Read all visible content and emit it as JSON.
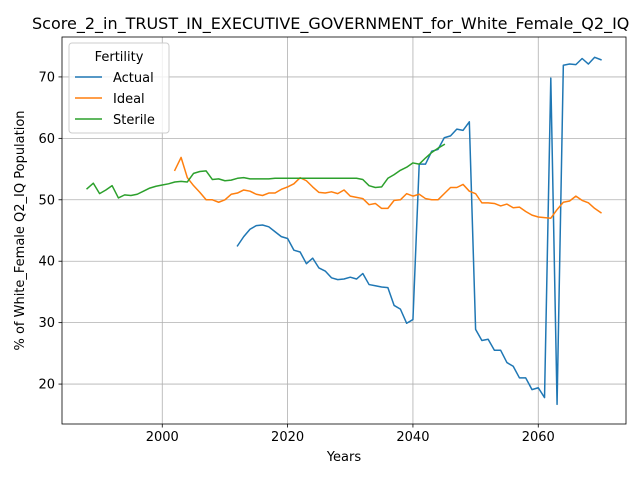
{
  "chart_data": {
    "type": "line",
    "title": "Score_2_in_TRUST_IN_EXECUTIVE_GOVERNMENT_for_White_Female_Q2_IQ",
    "xlabel": "Years",
    "ylabel": "% of White_Female Q2_IQ Population",
    "xlim": [
      1984,
      2074
    ],
    "ylim": [
      13.5,
      76.5
    ],
    "xticks": [
      2000,
      2020,
      2040,
      2060
    ],
    "yticks": [
      20,
      30,
      40,
      50,
      60,
      70
    ],
    "grid": true,
    "legend": {
      "title": "Fertility",
      "position": "upper-left"
    },
    "series": [
      {
        "name": "Actual",
        "color": "#1f77b4",
        "x": [
          2012,
          2013,
          2014,
          2015,
          2016,
          2017,
          2018,
          2019,
          2020,
          2021,
          2022,
          2023,
          2024,
          2025,
          2026,
          2027,
          2028,
          2029,
          2030,
          2031,
          2032,
          2033,
          2034,
          2035,
          2036,
          2037,
          2038,
          2039,
          2040,
          2041,
          2042,
          2043,
          2044,
          2045,
          2046,
          2047,
          2048,
          2049,
          2050,
          2051,
          2052,
          2053,
          2054,
          2055,
          2056,
          2057,
          2058,
          2059,
          2060,
          2061,
          2062,
          2063,
          2064,
          2065,
          2066,
          2067,
          2068,
          2069,
          2070
        ],
        "y": [
          42.5,
          44.0,
          45.2,
          45.8,
          45.9,
          45.6,
          44.8,
          44.0,
          43.7,
          41.8,
          41.5,
          39.6,
          40.5,
          38.9,
          38.4,
          37.3,
          37.0,
          37.1,
          37.4,
          37.1,
          38.0,
          36.2,
          36.0,
          35.8,
          35.7,
          32.8,
          32.2,
          29.9,
          30.5,
          55.8,
          55.8,
          57.9,
          58.2,
          60.1,
          60.4,
          61.5,
          61.3,
          62.7,
          28.9,
          27.1,
          27.3,
          25.5,
          25.5,
          23.5,
          22.9,
          21.0,
          21.0,
          19.1,
          19.4,
          17.8,
          69.8,
          16.7,
          71.9,
          72.1,
          72.0,
          73.0,
          72.1,
          73.2,
          72.8
        ]
      },
      {
        "name": "Ideal",
        "color": "#ff7f0e",
        "x": [
          2002,
          2003,
          2004,
          2005,
          2006,
          2007,
          2008,
          2009,
          2010,
          2011,
          2012,
          2013,
          2014,
          2015,
          2016,
          2017,
          2018,
          2019,
          2020,
          2021,
          2022,
          2023,
          2024,
          2025,
          2026,
          2027,
          2028,
          2029,
          2030,
          2031,
          2032,
          2033,
          2034,
          2035,
          2036,
          2037,
          2038,
          2039,
          2040,
          2041,
          2042,
          2043,
          2044,
          2045,
          2046,
          2047,
          2048,
          2049,
          2050,
          2051,
          2052,
          2053,
          2054,
          2055,
          2056,
          2057,
          2058,
          2059,
          2060,
          2061,
          2062,
          2063,
          2064,
          2065,
          2066,
          2067,
          2068,
          2069,
          2070
        ],
        "y": [
          54.8,
          56.9,
          53.6,
          52.3,
          51.2,
          50.0,
          50.0,
          49.6,
          50.0,
          50.9,
          51.1,
          51.6,
          51.4,
          50.9,
          50.7,
          51.1,
          51.1,
          51.7,
          52.1,
          52.6,
          53.6,
          53.1,
          52.1,
          51.2,
          51.1,
          51.3,
          51.0,
          51.6,
          50.6,
          50.4,
          50.2,
          49.2,
          49.4,
          48.6,
          48.6,
          49.9,
          50.0,
          51.0,
          50.6,
          50.9,
          50.2,
          50.0,
          50.0,
          51.0,
          52.0,
          52.0,
          52.5,
          51.4,
          51.0,
          49.5,
          49.5,
          49.4,
          49.0,
          49.3,
          48.7,
          48.8,
          48.1,
          47.5,
          47.2,
          47.1,
          47.0,
          48.4,
          49.6,
          49.8,
          50.6,
          49.9,
          49.5,
          48.6,
          47.9
        ]
      },
      {
        "name": "Sterile",
        "color": "#2ca02c",
        "x": [
          1988,
          1989,
          1990,
          1991,
          1992,
          1993,
          1994,
          1995,
          1996,
          1997,
          1998,
          1999,
          2000,
          2001,
          2002,
          2003,
          2004,
          2005,
          2006,
          2007,
          2008,
          2009,
          2010,
          2011,
          2012,
          2013,
          2014,
          2015,
          2016,
          2017,
          2018,
          2019,
          2020,
          2021,
          2022,
          2023,
          2024,
          2025,
          2026,
          2027,
          2028,
          2029,
          2030,
          2031,
          2032,
          2033,
          2034,
          2035,
          2036,
          2037,
          2038,
          2039,
          2040,
          2041,
          2042,
          2043,
          2044,
          2045
        ],
        "y": [
          51.8,
          52.7,
          51.0,
          51.6,
          52.3,
          50.3,
          50.8,
          50.7,
          50.9,
          51.4,
          51.9,
          52.2,
          52.4,
          52.6,
          52.9,
          53.0,
          52.9,
          54.3,
          54.6,
          54.7,
          53.3,
          53.4,
          53.1,
          53.2,
          53.5,
          53.6,
          53.4,
          53.4,
          53.4,
          53.4,
          53.5,
          53.5,
          53.5,
          53.5,
          53.5,
          53.5,
          53.5,
          53.5,
          53.5,
          53.5,
          53.5,
          53.5,
          53.5,
          53.5,
          53.3,
          52.3,
          52.0,
          52.1,
          53.5,
          54.1,
          54.8,
          55.3,
          56.0,
          55.8,
          56.8,
          57.7,
          58.4,
          59.0
        ]
      }
    ]
  }
}
